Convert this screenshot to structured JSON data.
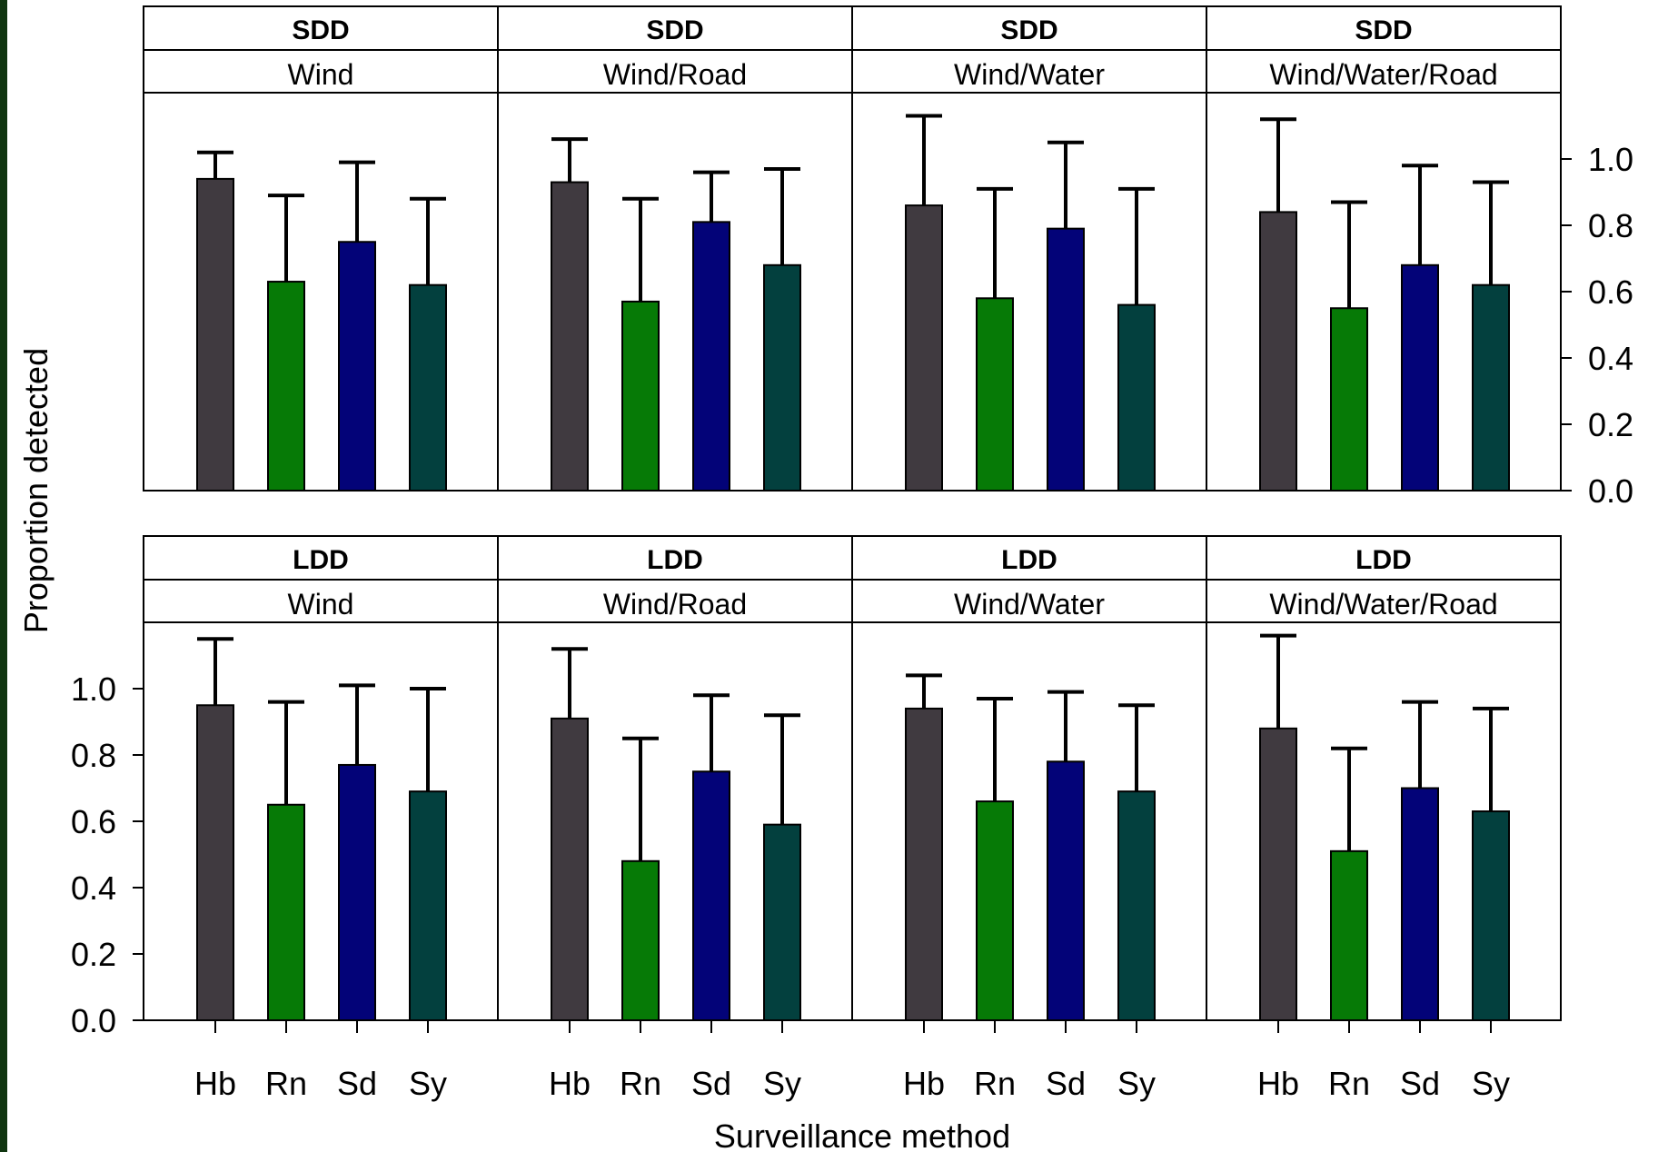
{
  "chart_data": {
    "type": "bar",
    "xlabel": "Surveillance method",
    "ylabel": "Proportion detected",
    "categories": [
      "Hb",
      "Rn",
      "Sd",
      "Sy"
    ],
    "ylim": [
      0,
      1.2
    ],
    "yticks": [
      "0.0",
      "0.2",
      "0.4",
      "0.6",
      "0.8",
      "1.0"
    ],
    "colors": [
      "#403a40",
      "#067a06",
      "#030378",
      "#03403e"
    ],
    "error_bars": "upper",
    "panels": [
      {
        "group": "SDD",
        "vector": "Wind",
        "values": [
          0.94,
          0.63,
          0.75,
          0.62
        ],
        "upper": [
          1.02,
          0.89,
          0.99,
          0.88
        ]
      },
      {
        "group": "SDD",
        "vector": "Wind/Road",
        "values": [
          0.93,
          0.57,
          0.81,
          0.68
        ],
        "upper": [
          1.06,
          0.88,
          0.96,
          0.97
        ]
      },
      {
        "group": "SDD",
        "vector": "Wind/Water",
        "values": [
          0.86,
          0.58,
          0.79,
          0.56
        ],
        "upper": [
          1.13,
          0.91,
          1.05,
          0.91
        ]
      },
      {
        "group": "SDD",
        "vector": "Wind/Water/Road",
        "values": [
          0.84,
          0.55,
          0.68,
          0.62
        ],
        "upper": [
          1.12,
          0.87,
          0.98,
          0.93
        ]
      },
      {
        "group": "LDD",
        "vector": "Wind",
        "values": [
          0.95,
          0.65,
          0.77,
          0.69
        ],
        "upper": [
          1.15,
          0.96,
          1.01,
          1.0
        ]
      },
      {
        "group": "LDD",
        "vector": "Wind/Road",
        "values": [
          0.91,
          0.48,
          0.75,
          0.59
        ],
        "upper": [
          1.12,
          0.85,
          0.98,
          0.92
        ]
      },
      {
        "group": "LDD",
        "vector": "Wind/Water",
        "values": [
          0.94,
          0.66,
          0.78,
          0.69
        ],
        "upper": [
          1.04,
          0.97,
          0.99,
          0.95
        ]
      },
      {
        "group": "LDD",
        "vector": "Wind/Water/Road",
        "values": [
          0.88,
          0.51,
          0.7,
          0.63
        ],
        "upper": [
          1.16,
          0.82,
          0.96,
          0.94
        ]
      }
    ]
  }
}
